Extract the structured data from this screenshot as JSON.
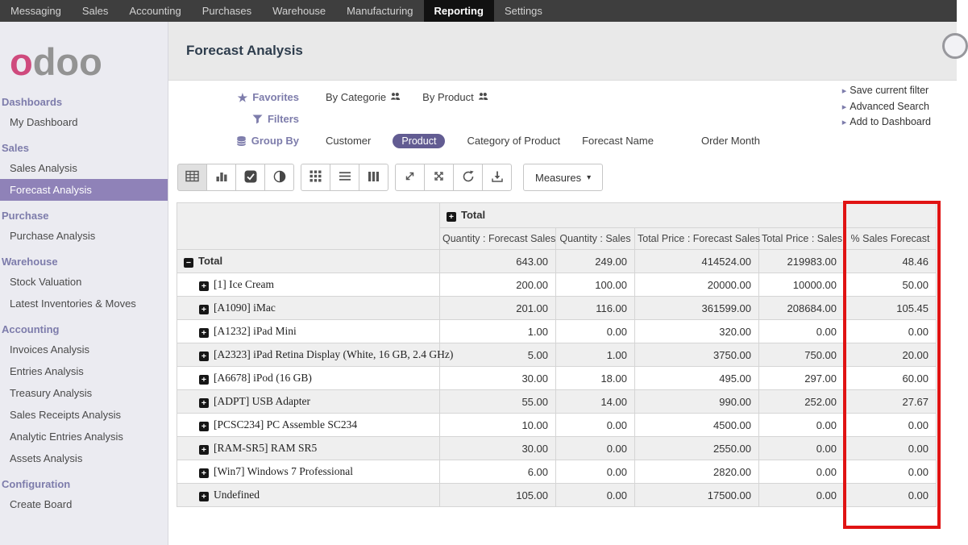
{
  "colors": {
    "accent": "#7d7cab",
    "selected_pill": "#625c92",
    "active_sidebar": "#8f82b8",
    "annotation": "#e01313"
  },
  "topbar": {
    "items": [
      {
        "label": "Messaging",
        "active": false
      },
      {
        "label": "Sales",
        "active": false
      },
      {
        "label": "Accounting",
        "active": false
      },
      {
        "label": "Purchases",
        "active": false
      },
      {
        "label": "Warehouse",
        "active": false
      },
      {
        "label": "Manufacturing",
        "active": false
      },
      {
        "label": "Reporting",
        "active": true
      },
      {
        "label": "Settings",
        "active": false
      }
    ]
  },
  "sidebar": {
    "logo_first": "o",
    "logo_rest": "doo",
    "sections": [
      {
        "heading": "Dashboards",
        "items": [
          {
            "label": "My Dashboard",
            "active": false
          }
        ]
      },
      {
        "heading": "Sales",
        "items": [
          {
            "label": "Sales Analysis",
            "active": false
          },
          {
            "label": "Forecast Analysis",
            "active": true
          }
        ]
      },
      {
        "heading": "Purchase",
        "items": [
          {
            "label": "Purchase Analysis",
            "active": false
          }
        ]
      },
      {
        "heading": "Warehouse",
        "items": [
          {
            "label": "Stock Valuation",
            "active": false
          },
          {
            "label": "Latest Inventories & Moves",
            "active": false
          }
        ]
      },
      {
        "heading": "Accounting",
        "items": [
          {
            "label": "Invoices Analysis",
            "active": false
          },
          {
            "label": "Entries Analysis",
            "active": false
          },
          {
            "label": "Treasury Analysis",
            "active": false
          },
          {
            "label": "Sales Receipts Analysis",
            "active": false
          },
          {
            "label": "Analytic Entries Analysis",
            "active": false
          },
          {
            "label": "Assets Analysis",
            "active": false
          }
        ]
      },
      {
        "heading": "Configuration",
        "items": [
          {
            "label": "Create Board",
            "active": false
          }
        ]
      }
    ]
  },
  "header": {
    "title": "Forecast Analysis"
  },
  "search": {
    "favorites_label": "Favorites",
    "favorite_items": [
      "By Categorie",
      "By Product"
    ],
    "filters_label": "Filters",
    "groupby_label": "Group By",
    "groupby_items": [
      {
        "label": "Customer",
        "selected": false
      },
      {
        "label": "Product",
        "selected": true
      },
      {
        "label": "Category of Product",
        "selected": false
      },
      {
        "label": "Forecast Name",
        "selected": false
      },
      {
        "label": "Order Month",
        "selected": false
      }
    ],
    "right_links": [
      "Save current filter",
      "Advanced Search",
      "Add to Dashboard"
    ]
  },
  "toolbar": {
    "measures_label": "Measures"
  },
  "pivot": {
    "col_group_label": "Total",
    "measures": [
      "Quantity : Forecast Sales",
      "Quantity : Sales",
      "Total Price : Forecast Sales",
      "Total Price : Sales",
      "% Sales Forecast"
    ],
    "rows": [
      {
        "label": "Total",
        "level": 0,
        "expanded": true,
        "values": [
          "643.00",
          "249.00",
          "414524.00",
          "219983.00",
          "48.46"
        ]
      },
      {
        "label": "[1] Ice Cream",
        "level": 1,
        "expanded": false,
        "values": [
          "200.00",
          "100.00",
          "20000.00",
          "10000.00",
          "50.00"
        ]
      },
      {
        "label": "[A1090] iMac",
        "level": 1,
        "expanded": false,
        "values": [
          "201.00",
          "116.00",
          "361599.00",
          "208684.00",
          "105.45"
        ]
      },
      {
        "label": "[A1232] iPad Mini",
        "level": 1,
        "expanded": false,
        "values": [
          "1.00",
          "0.00",
          "320.00",
          "0.00",
          "0.00"
        ]
      },
      {
        "label": "[A2323] iPad Retina Display (White, 16 GB, 2.4 GHz)",
        "level": 1,
        "expanded": false,
        "values": [
          "5.00",
          "1.00",
          "3750.00",
          "750.00",
          "20.00"
        ]
      },
      {
        "label": "[A6678] iPod (16 GB)",
        "level": 1,
        "expanded": false,
        "values": [
          "30.00",
          "18.00",
          "495.00",
          "297.00",
          "60.00"
        ]
      },
      {
        "label": "[ADPT] USB Adapter",
        "level": 1,
        "expanded": false,
        "values": [
          "55.00",
          "14.00",
          "990.00",
          "252.00",
          "27.67"
        ]
      },
      {
        "label": "[PCSC234] PC Assemble SC234",
        "level": 1,
        "expanded": false,
        "values": [
          "10.00",
          "0.00",
          "4500.00",
          "0.00",
          "0.00"
        ]
      },
      {
        "label": "[RAM-SR5] RAM SR5",
        "level": 1,
        "expanded": false,
        "values": [
          "30.00",
          "0.00",
          "2550.00",
          "0.00",
          "0.00"
        ]
      },
      {
        "label": "[Win7] Windows 7 Professional",
        "level": 1,
        "expanded": false,
        "values": [
          "6.00",
          "0.00",
          "2820.00",
          "0.00",
          "0.00"
        ]
      },
      {
        "label": "Undefined",
        "level": 1,
        "expanded": false,
        "values": [
          "105.00",
          "0.00",
          "17500.00",
          "0.00",
          "0.00"
        ]
      }
    ]
  }
}
